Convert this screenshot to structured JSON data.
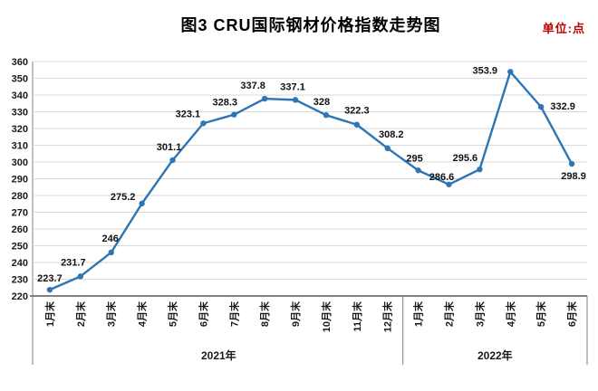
{
  "header": {
    "title": "图3 CRU国际钢材价格指数走势图",
    "unit_label": "单位:点"
  },
  "chart_data": {
    "type": "line",
    "title": "图3 CRU国际钢材价格指数走势图",
    "ylabel": "",
    "xlabel": "",
    "unit": "点",
    "ylim": [
      220,
      360
    ],
    "ytick_step": 10,
    "grid": true,
    "legend": "none",
    "line_color": "#2E75B6",
    "colors": {
      "grid": "#d9d9d9",
      "axis": "#7f7f7f",
      "axis_bottom": "#595959",
      "data_label": "#111111",
      "unit_red": "#c00000"
    },
    "groups": [
      {
        "label": "2021年",
        "categories": [
          "1月末",
          "2月末",
          "3月末",
          "4月末",
          "5月末",
          "6月末",
          "7月末",
          "8月末",
          "9月末",
          "10月末",
          "11月末",
          "12月末"
        ],
        "values": [
          223.7,
          231.7,
          246,
          275.2,
          301.1,
          323.1,
          328.3,
          337.8,
          337.1,
          328,
          322.3,
          308.2
        ]
      },
      {
        "label": "2022年",
        "categories": [
          "1月末",
          "2月末",
          "3月末",
          "4月末",
          "5月末",
          "6月末"
        ],
        "values": [
          295,
          286.6,
          295.6,
          353.9,
          332.9,
          298.9
        ]
      }
    ]
  }
}
